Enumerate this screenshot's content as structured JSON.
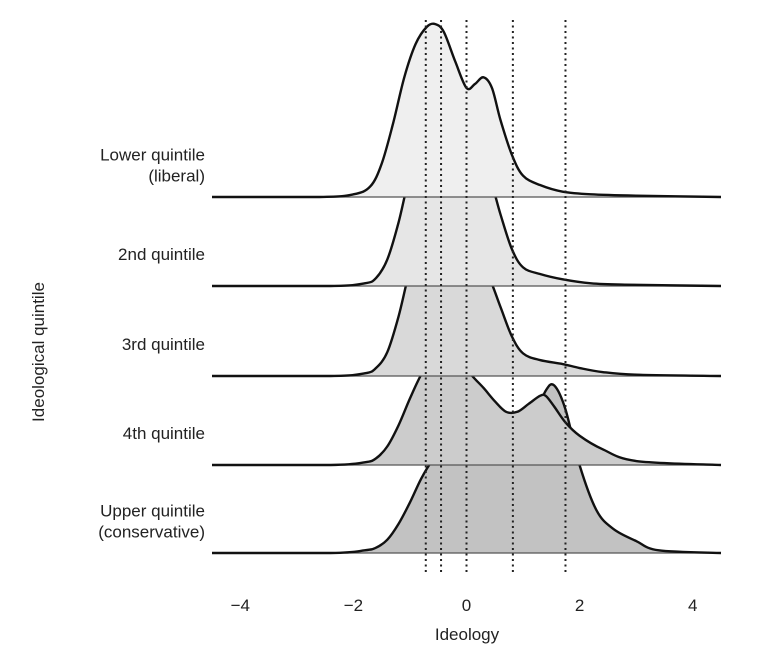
{
  "chart_data": {
    "type": "area",
    "subtype": "ridgeline",
    "xlabel": "Ideology",
    "ylabel": "Ideological quintile",
    "xlim": [
      -4.5,
      4.5
    ],
    "x_ticks": [
      -4,
      -2,
      0,
      2,
      4
    ],
    "x_tick_labels": [
      "−4",
      "−2",
      "0",
      "2",
      "4"
    ],
    "grid": false,
    "legend": "none",
    "reference_lines": [
      -0.72,
      -0.45,
      0,
      0.82,
      1.75
    ],
    "colors": {
      "line": "#111111",
      "baseline": "#555555",
      "reference": "#222222",
      "fill_lightest": "#efefef",
      "fill_light": "#e6e6e6",
      "fill_mid": "#d9d9d9",
      "fill_dark": "#cccccc",
      "fill_darkest": "#c2c2c2"
    },
    "series": [
      {
        "name": "Lower quintile\n(liberal)",
        "label_lines": [
          "Lower quintile",
          "(liberal)"
        ],
        "fill": "#efefef",
        "x": [
          -4.5,
          -2.6,
          -2.0,
          -1.7,
          -1.5,
          -1.3,
          -1.1,
          -0.9,
          -0.7,
          -0.55,
          -0.4,
          -0.2,
          0.0,
          0.15,
          0.3,
          0.45,
          0.6,
          0.8,
          1.0,
          1.3,
          1.7,
          2.2,
          3.0,
          4.5
        ],
        "density": [
          0,
          0,
          0.02,
          0.08,
          0.25,
          0.55,
          0.9,
          1.15,
          1.28,
          1.3,
          1.24,
          1.02,
          0.82,
          0.85,
          0.9,
          0.82,
          0.58,
          0.32,
          0.16,
          0.09,
          0.04,
          0.02,
          0.01,
          0
        ]
      },
      {
        "name": "2nd quintile",
        "label_lines": [
          "2nd quintile"
        ],
        "fill": "#e6e6e6",
        "x": [
          -4.5,
          -2.4,
          -1.8,
          -1.6,
          -1.4,
          -1.2,
          -1.0,
          -0.8,
          -0.6,
          -0.45,
          -0.35,
          -0.15,
          0.0,
          0.15,
          0.3,
          0.45,
          0.6,
          0.8,
          1.0,
          1.3,
          1.7,
          2.2,
          2.8,
          4.5
        ],
        "density": [
          0,
          0,
          0.02,
          0.06,
          0.2,
          0.48,
          0.84,
          1.08,
          1.22,
          1.26,
          1.2,
          0.98,
          0.82,
          0.84,
          0.88,
          0.76,
          0.54,
          0.28,
          0.14,
          0.09,
          0.05,
          0.02,
          0.01,
          0
        ]
      },
      {
        "name": "3rd quintile",
        "label_lines": [
          "3rd quintile"
        ],
        "fill": "#d9d9d9",
        "x": [
          -4.5,
          -2.4,
          -1.8,
          -1.6,
          -1.4,
          -1.2,
          -1.0,
          -0.8,
          -0.6,
          -0.45,
          -0.35,
          -0.15,
          0.0,
          0.2,
          0.4,
          0.6,
          0.8,
          1.0,
          1.3,
          1.7,
          2.0,
          2.4,
          3.0,
          4.5
        ],
        "density": [
          0,
          0,
          0.02,
          0.06,
          0.18,
          0.45,
          0.8,
          1.05,
          1.17,
          1.2,
          1.17,
          1.02,
          0.92,
          0.86,
          0.74,
          0.52,
          0.3,
          0.17,
          0.12,
          0.09,
          0.06,
          0.03,
          0.01,
          0
        ]
      },
      {
        "name": "4th quintile",
        "label_lines": [
          "4th quintile"
        ],
        "fill": "#cccccc",
        "x": [
          -4.5,
          -2.4,
          -1.8,
          -1.6,
          -1.4,
          -1.2,
          -1.0,
          -0.8,
          -0.6,
          -0.4,
          -0.3,
          -0.1,
          0.1,
          0.3,
          0.5,
          0.7,
          0.9,
          1.1,
          1.3,
          1.4,
          1.55,
          1.75,
          2.0,
          2.4,
          3.0,
          4.5
        ],
        "density": [
          0,
          0,
          0.02,
          0.05,
          0.14,
          0.3,
          0.5,
          0.68,
          0.8,
          0.86,
          0.86,
          0.78,
          0.67,
          0.58,
          0.48,
          0.4,
          0.4,
          0.46,
          0.52,
          0.52,
          0.44,
          0.32,
          0.22,
          0.12,
          0.03,
          0
        ]
      },
      {
        "name": "Upper quintile\n(conservative)",
        "label_lines": [
          "Upper quintile",
          "(conservative)"
        ],
        "fill": "#c2c2c2",
        "x": [
          -4.5,
          -2.4,
          -1.8,
          -1.6,
          -1.4,
          -1.2,
          -1.0,
          -0.8,
          -0.6,
          -0.4,
          -0.2,
          0.0,
          0.2,
          0.4,
          0.6,
          0.8,
          1.0,
          1.2,
          1.4,
          1.55,
          1.75,
          2.0,
          2.3,
          2.6,
          3.0,
          3.4,
          4.5
        ],
        "density": [
          0,
          0,
          0.02,
          0.04,
          0.1,
          0.22,
          0.38,
          0.56,
          0.7,
          0.8,
          0.86,
          0.86,
          0.82,
          0.8,
          0.78,
          0.74,
          0.82,
          1.02,
          1.22,
          1.26,
          1.08,
          0.66,
          0.32,
          0.18,
          0.09,
          0.02,
          0
        ]
      }
    ]
  }
}
